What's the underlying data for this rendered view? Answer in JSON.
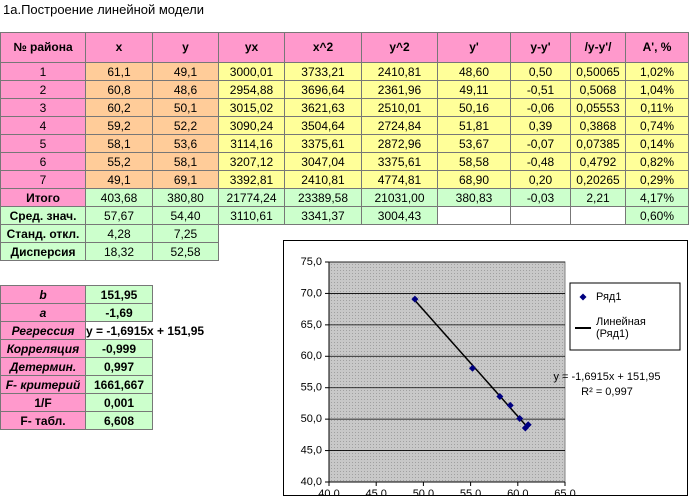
{
  "title": "1а.Построение линейной модели",
  "table": {
    "header": [
      "№ района",
      "x",
      "y",
      "yx",
      "x^2",
      "y^2",
      "y'",
      "y-y'",
      "/y-y'/",
      "A', %"
    ],
    "rows": [
      [
        "1",
        "61,1",
        "49,1",
        "3000,01",
        "3733,21",
        "2410,81",
        "48,60",
        "0,50",
        "0,50065",
        "1,02%"
      ],
      [
        "2",
        "60,8",
        "48,6",
        "2954,88",
        "3696,64",
        "2361,96",
        "49,11",
        "-0,51",
        "0,5068",
        "1,04%"
      ],
      [
        "3",
        "60,2",
        "50,1",
        "3015,02",
        "3621,63",
        "2510,01",
        "50,16",
        "-0,06",
        "0,05553",
        "0,11%"
      ],
      [
        "4",
        "59,2",
        "52,2",
        "3090,24",
        "3504,64",
        "2724,84",
        "51,81",
        "0,39",
        "0,3868",
        "0,74%"
      ],
      [
        "5",
        "58,1",
        "53,6",
        "3114,16",
        "3375,61",
        "2872,96",
        "53,67",
        "-0,07",
        "0,07385",
        "0,14%"
      ],
      [
        "6",
        "55,2",
        "58,1",
        "3207,12",
        "3047,04",
        "3375,61",
        "58,58",
        "-0,48",
        "0,4792",
        "0,82%"
      ],
      [
        "7",
        "49,1",
        "69,1",
        "3392,81",
        "2410,81",
        "4774,81",
        "68,90",
        "0,20",
        "0,20265",
        "0,29%"
      ],
      [
        "Итого",
        "403,68",
        "380,80",
        "21774,24",
        "23389,58",
        "21031,00",
        "380,83",
        "-0,03",
        "2,21",
        "4,17%"
      ],
      [
        "Сред. знач.",
        "57,67",
        "54,40",
        "3110,61",
        "3341,37",
        "3004,43",
        null,
        null,
        null,
        "0,60%"
      ],
      [
        "Станд. откл.",
        "4,28",
        "7,25"
      ],
      [
        "Дисперсия",
        "18,32",
        "52,58"
      ]
    ]
  },
  "stats": {
    "rows": [
      {
        "label": "b",
        "value": "151,95"
      },
      {
        "label": "a",
        "value": "-1,69"
      },
      {
        "label": "Регрессия",
        "value": "y = -1,6915x + 151,95"
      },
      {
        "label": "Корреляция",
        "value": "-0,999"
      },
      {
        "label": "Детермин.",
        "value": "0,997"
      },
      {
        "label": "F- критерий",
        "value": "1661,667"
      },
      {
        "label": "1/F",
        "value": "0,001"
      },
      {
        "label": "F- табл.",
        "value": "6,608"
      }
    ]
  },
  "chart_data": {
    "type": "scatter",
    "series": [
      {
        "name": "Ряд1",
        "color": "#000080",
        "x": [
          61.1,
          60.8,
          60.2,
          59.2,
          58.1,
          55.2,
          49.1
        ],
        "values": [
          49.1,
          48.6,
          50.1,
          52.2,
          53.6,
          58.1,
          69.1
        ]
      }
    ],
    "trendline": {
      "name": "Линейная (Ряд1)",
      "slope": -1.6915,
      "intercept": 151.95,
      "label": "y = -1,6915x + 151,95",
      "r2_label": "R² = 0,997",
      "color": "#000000"
    },
    "xlim": [
      40,
      65
    ],
    "xticks": [
      {
        "value": 40,
        "label": "40,0"
      },
      {
        "value": 45,
        "label": "45,0"
      },
      {
        "value": 50,
        "label": "50,0"
      },
      {
        "value": 55,
        "label": "55,0"
      },
      {
        "value": 60,
        "label": "60,0"
      },
      {
        "value": 65,
        "label": "65,0"
      }
    ],
    "ylim": [
      40,
      75
    ],
    "yticks": [
      {
        "value": 40,
        "label": "40,0"
      },
      {
        "value": 45,
        "label": "45,0"
      },
      {
        "value": 50,
        "label": "50,0"
      },
      {
        "value": 55,
        "label": "55,0"
      },
      {
        "value": 60,
        "label": "60,0"
      },
      {
        "value": 65,
        "label": "65,0"
      },
      {
        "value": 70,
        "label": "70,0"
      },
      {
        "value": 75,
        "label": "75,0"
      }
    ],
    "grid": true,
    "legend": "right"
  }
}
